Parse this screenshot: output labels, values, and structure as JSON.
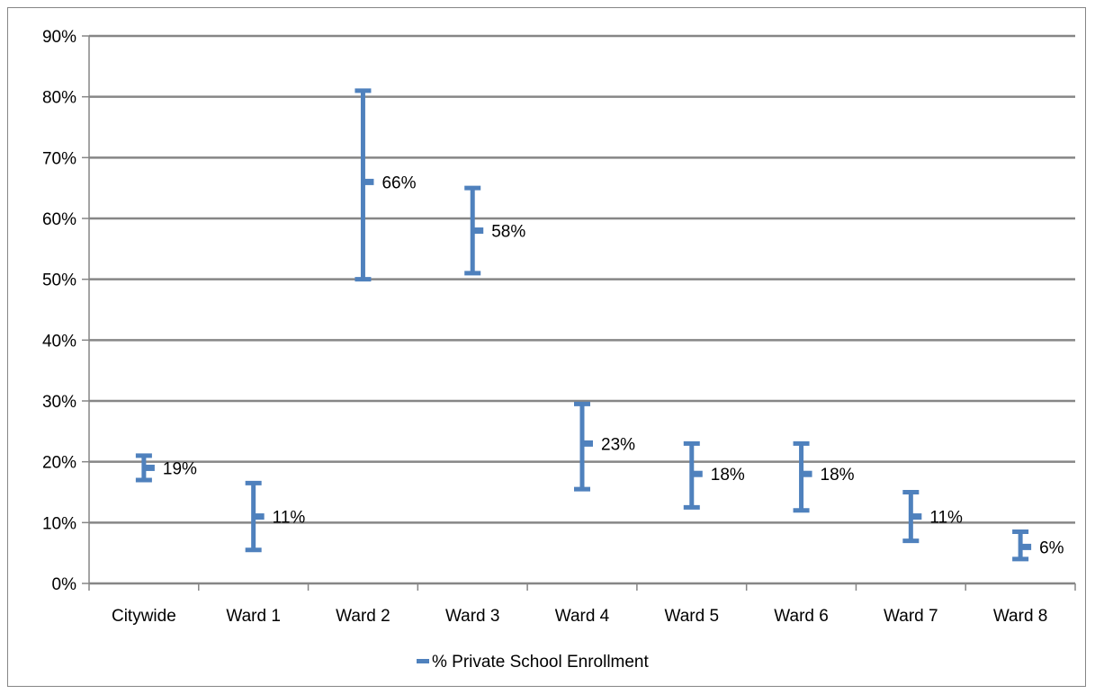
{
  "chart_data": {
    "type": "errorbar",
    "title": "",
    "xlabel": "",
    "ylabel": "",
    "ylim": [
      0,
      90
    ],
    "y_tick_step": 10,
    "y_tick_format": "percent",
    "grid": true,
    "legend_position": "bottom",
    "series_color": "#4F81BD",
    "grid_color": "#868686",
    "categories": [
      "Citywide",
      "Ward 1",
      "Ward 2",
      "Ward 3",
      "Ward 4",
      "Ward 5",
      "Ward 6",
      "Ward 7",
      "Ward 8"
    ],
    "series": [
      {
        "name": "% Private School Enrollment",
        "values": [
          19,
          11,
          66,
          58,
          23,
          18,
          18,
          11,
          6
        ],
        "lower": [
          17,
          5.5,
          50,
          51,
          15.5,
          12.5,
          12,
          7,
          4
        ],
        "upper": [
          21,
          16.5,
          81,
          65,
          29.5,
          23,
          23,
          15,
          8.5
        ],
        "data_labels": [
          "19%",
          "11%",
          "66%",
          "58%",
          "23%",
          "18%",
          "18%",
          "11%",
          "6%"
        ]
      }
    ]
  }
}
